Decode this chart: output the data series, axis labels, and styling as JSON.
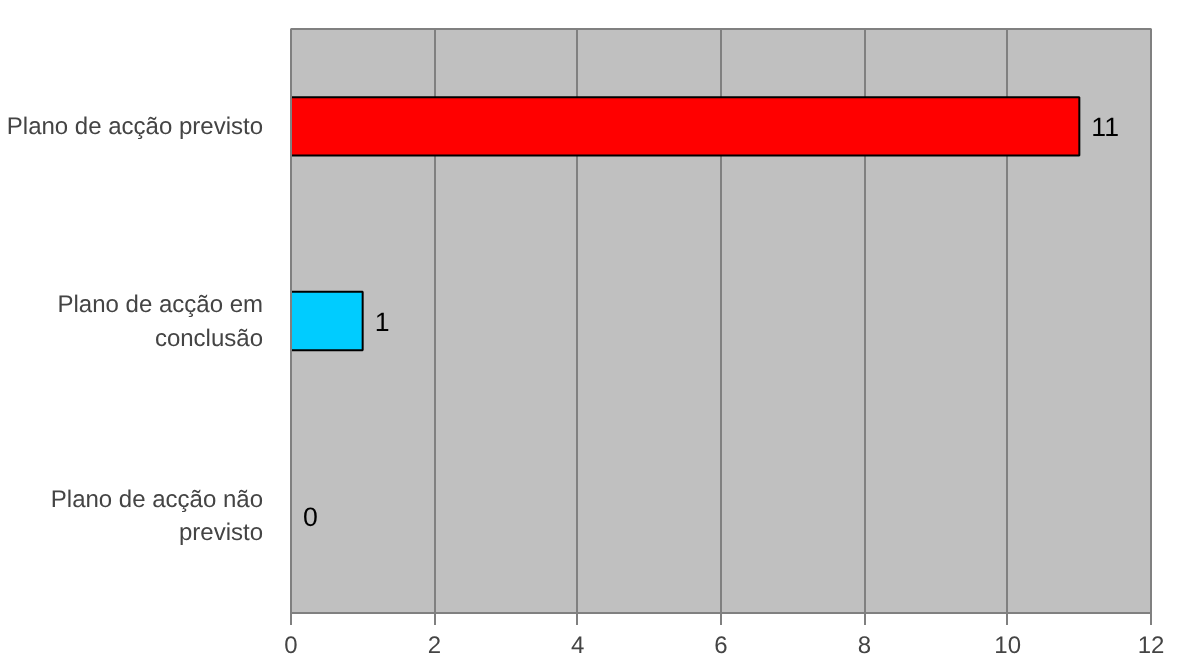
{
  "chart_data": {
    "type": "bar",
    "orientation": "horizontal",
    "categories": [
      "Plano de acção previsto",
      "Plano de acção em\nconclusão",
      "Plano de acção não\nprevisto"
    ],
    "values": [
      11,
      1,
      0
    ],
    "colors": [
      "#ff0000",
      "#00ccff",
      "#000000"
    ],
    "xlim": [
      0,
      12
    ],
    "xticks": [
      0,
      2,
      4,
      6,
      8,
      10,
      12
    ],
    "grid": "x",
    "data_labels": true
  }
}
